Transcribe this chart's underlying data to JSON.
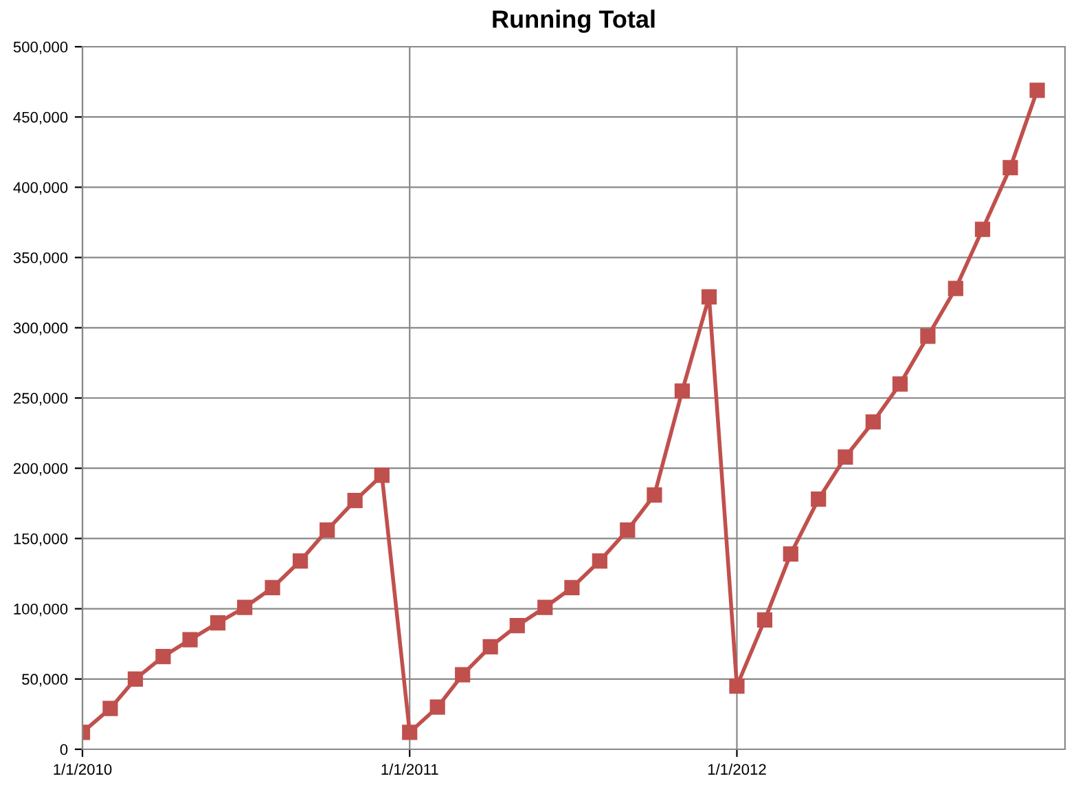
{
  "chart_data": {
    "type": "line",
    "title": "Running Total",
    "x": [
      "2010-01",
      "2010-02",
      "2010-03",
      "2010-04",
      "2010-05",
      "2010-06",
      "2010-07",
      "2010-08",
      "2010-09",
      "2010-10",
      "2010-11",
      "2010-12",
      "2011-01",
      "2011-02",
      "2011-03",
      "2011-04",
      "2011-05",
      "2011-06",
      "2011-07",
      "2011-08",
      "2011-09",
      "2011-10",
      "2011-11",
      "2011-12",
      "2012-01",
      "2012-02",
      "2012-03",
      "2012-04",
      "2012-05",
      "2012-06",
      "2012-07",
      "2012-08",
      "2012-09",
      "2012-10",
      "2012-11",
      "2012-12"
    ],
    "series": [
      {
        "color": "#c0504d",
        "values": [
          12000,
          29000,
          50000,
          66000,
          78000,
          90000,
          101000,
          115000,
          134000,
          156000,
          177000,
          195000,
          12000,
          30000,
          53000,
          73000,
          88000,
          101000,
          115000,
          134000,
          156000,
          181000,
          255000,
          322000,
          45000,
          92000,
          139000,
          178000,
          208000,
          233000,
          260000,
          294000,
          328000,
          370000,
          414000,
          469000
        ]
      }
    ],
    "xlim": [
      "2010-01-01",
      "2013-01-01"
    ],
    "xticks": [
      {
        "value": "2010-01-01",
        "label": "1/1/2010"
      },
      {
        "value": "2011-01-01",
        "label": "1/1/2011"
      },
      {
        "value": "2012-01-01",
        "label": "1/1/2012"
      }
    ],
    "ylim": [
      0,
      500000
    ],
    "yticks": [
      {
        "value": 0,
        "label": "0"
      },
      {
        "value": 50000,
        "label": "50,000"
      },
      {
        "value": 100000,
        "label": "100,000"
      },
      {
        "value": 150000,
        "label": "150,000"
      },
      {
        "value": 200000,
        "label": "200,000"
      },
      {
        "value": 250000,
        "label": "250,000"
      },
      {
        "value": 300000,
        "label": "300,000"
      },
      {
        "value": 350000,
        "label": "350,000"
      },
      {
        "value": 400000,
        "label": "400,000"
      },
      {
        "value": 450000,
        "label": "450,000"
      },
      {
        "value": 500000,
        "label": "500,000"
      }
    ],
    "grid": true,
    "marker": "square",
    "line_style": "solid",
    "legend": false
  }
}
